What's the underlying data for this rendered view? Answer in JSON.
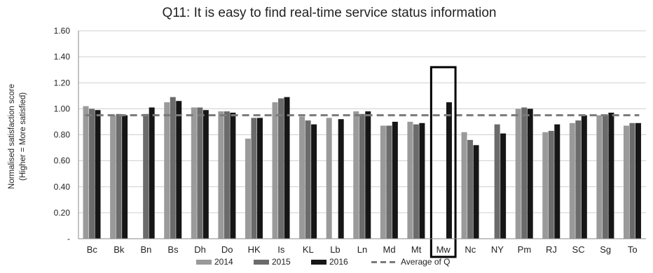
{
  "chart_data": {
    "type": "bar",
    "title": "Q11: It is easy to find real-time service status information",
    "ylabel_line1": "Normalised satisfaction score",
    "ylabel_line2": "(Higher = More satisfied)",
    "xlabel": "",
    "ylim": [
      0,
      1.6
    ],
    "yticks": [
      0,
      0.2,
      0.4,
      0.6,
      0.8,
      1.0,
      1.2,
      1.4,
      1.6
    ],
    "ytick_labels": [
      "-",
      "0.20",
      "0.40",
      "0.60",
      "0.80",
      "1.00",
      "1.20",
      "1.40",
      "1.60"
    ],
    "grid": true,
    "legend_position": "bottom",
    "categories": [
      "Bc",
      "Bk",
      "Bn",
      "Bs",
      "Dh",
      "Do",
      "HK",
      "Is",
      "KL",
      "Lb",
      "Ln",
      "Md",
      "Mt",
      "Mw",
      "Nc",
      "NY",
      "Pm",
      "RJ",
      "SC",
      "Sg",
      "To"
    ],
    "series": [
      {
        "name": "2014",
        "color": "#9a9a9a",
        "values": [
          1.02,
          0.95,
          null,
          1.05,
          1.01,
          0.98,
          0.77,
          1.05,
          0.94,
          0.93,
          0.98,
          0.87,
          0.9,
          null,
          0.82,
          null,
          1.0,
          0.82,
          0.89,
          0.95,
          0.87
        ]
      },
      {
        "name": "2015",
        "color": "#6b6b6b",
        "values": [
          1.0,
          0.96,
          0.96,
          1.09,
          1.01,
          0.98,
          0.93,
          1.08,
          0.91,
          null,
          0.96,
          0.87,
          0.88,
          null,
          0.76,
          0.88,
          1.01,
          0.83,
          0.91,
          0.95,
          0.89
        ]
      },
      {
        "name": "2016",
        "color": "#161616",
        "values": [
          0.99,
          0.95,
          1.01,
          1.06,
          0.99,
          0.97,
          0.93,
          1.09,
          0.88,
          0.92,
          0.98,
          0.9,
          0.89,
          1.05,
          0.72,
          0.81,
          1.0,
          0.88,
          0.95,
          0.97,
          0.89
        ]
      }
    ],
    "average": {
      "name": "Average of Q",
      "value": 0.95,
      "color": "#7a7a7a"
    },
    "highlight_category": "Mw"
  }
}
